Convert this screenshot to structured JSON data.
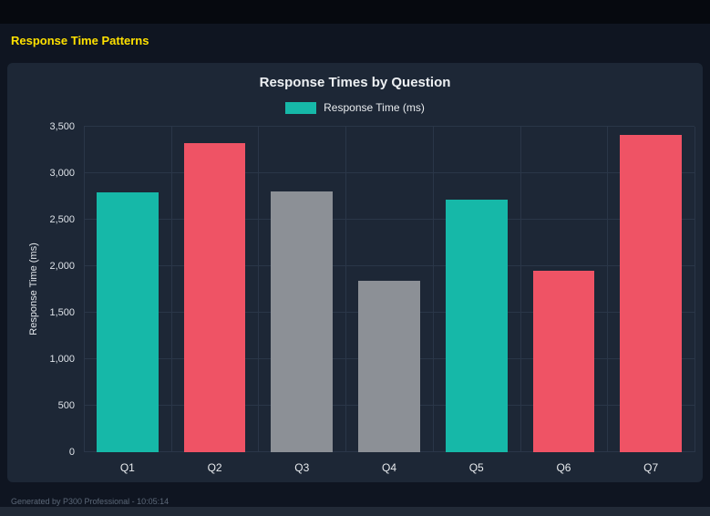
{
  "window": {
    "title_text": "Response Time Patterns",
    "footer_text": "Generated by P300 Professional - 10:05:14",
    "accent_color": "#ffe100",
    "panel_color": "#1d2736",
    "background_color": "#0f1521"
  },
  "chart_data": {
    "type": "bar",
    "title": "Response Times by Question",
    "xlabel": "",
    "ylabel": "Response Time (ms)",
    "legend": {
      "label": "Response Time (ms)",
      "color": "#16b8a8",
      "position": "top"
    },
    "categories": [
      "Q1",
      "Q2",
      "Q3",
      "Q4",
      "Q5",
      "Q6",
      "Q7"
    ],
    "values": [
      2790,
      3325,
      2800,
      1840,
      2715,
      1950,
      3410
    ],
    "bar_colors": [
      "#16b8a8",
      "#ef5365",
      "#8c9096",
      "#8c9096",
      "#16b8a8",
      "#ef5365",
      "#ef5365"
    ],
    "ylim": [
      0,
      3500
    ],
    "y_ticks": [
      0,
      500,
      1000,
      1500,
      2000,
      2500,
      3000,
      3500
    ],
    "y_tick_labels": [
      "0",
      "500",
      "1,000",
      "1,500",
      "2,000",
      "2,500",
      "3,000",
      "3,500"
    ],
    "grid": true,
    "grid_color": "#2a3648"
  }
}
